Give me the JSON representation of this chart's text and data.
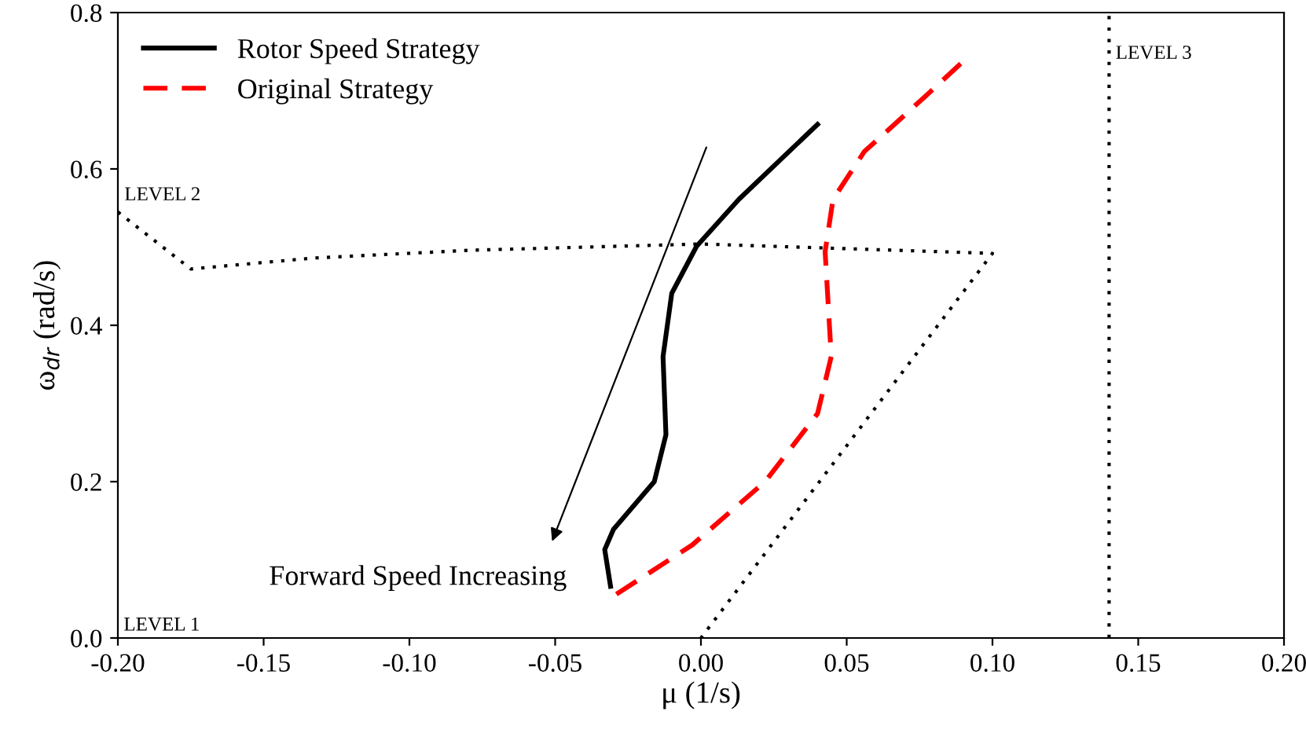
{
  "chart_data": {
    "type": "line",
    "xlabel": "μ (1/s)",
    "ylabel": "ω$_{dr}$ (rad/s)",
    "xlim": [
      -0.2,
      0.2
    ],
    "xticks": [
      {
        "value": -0.2,
        "label": "-0.20"
      },
      {
        "value": -0.15,
        "label": "-0.15"
      },
      {
        "value": -0.1,
        "label": "-0.10"
      },
      {
        "value": -0.05,
        "label": "-0.05"
      },
      {
        "value": 0,
        "label": "0.00"
      },
      {
        "value": 0.05,
        "label": "0.05"
      },
      {
        "value": 0.1,
        "label": "0.10"
      },
      {
        "value": 0.15,
        "label": "0.15"
      },
      {
        "value": 0.2,
        "label": "0.20"
      }
    ],
    "ylim": [
      0,
      0.8
    ],
    "yticks": [
      {
        "value": 0,
        "label": "0.0"
      },
      {
        "value": 0.2,
        "label": "0.2"
      },
      {
        "value": 0.4,
        "label": "0.4"
      },
      {
        "value": 0.6,
        "label": "0.6"
      },
      {
        "value": 0.8,
        "label": "0.8"
      }
    ],
    "grid": false,
    "legend": "top left",
    "series": [
      {
        "name": "Rotor Speed Strategy",
        "color": "#000000",
        "line_style": "solid",
        "x": [
          -0.031,
          -0.033,
          -0.03,
          -0.016,
          -0.012,
          -0.013,
          -0.01,
          -0.0015,
          0.013,
          0.04
        ],
        "values": [
          0.066,
          0.113,
          0.139,
          0.2,
          0.26,
          0.36,
          0.441,
          0.501,
          0.561,
          0.657
        ]
      },
      {
        "name": "Original Strategy",
        "color": "#ff0000",
        "line_style": "dashed",
        "x": [
          -0.029,
          -0.003,
          0.022,
          0.04,
          0.0447,
          0.0426,
          0.0453,
          0.056,
          0.0776,
          0.0895
        ],
        "values": [
          0.056,
          0.119,
          0.2,
          0.287,
          0.36,
          0.494,
          0.561,
          0.622,
          0.695,
          0.736
        ]
      },
      {
        "color": "#000000",
        "line_style": "dotted",
        "x": [
          -0.2,
          -0.175,
          -0.133,
          -0.079,
          0.0,
          0.1,
          0.0
        ],
        "values": [
          0.545,
          0.472,
          0.486,
          0.496,
          0.504,
          0.492,
          0.0
        ]
      },
      {
        "color": "#000000",
        "line_style": "dotted",
        "x": [
          0.14,
          0.14
        ],
        "values": [
          0.0,
          0.8
        ]
      }
    ],
    "annotations": [
      "LEVEL 1",
      {
        "text": "LEVEL 2",
        "x": -0.2,
        "y": 0.549
      },
      {
        "text": "LEVEL 3",
        "x": 0.14,
        "y": 0.73
      },
      "Forward Speed Increasing"
    ]
  }
}
